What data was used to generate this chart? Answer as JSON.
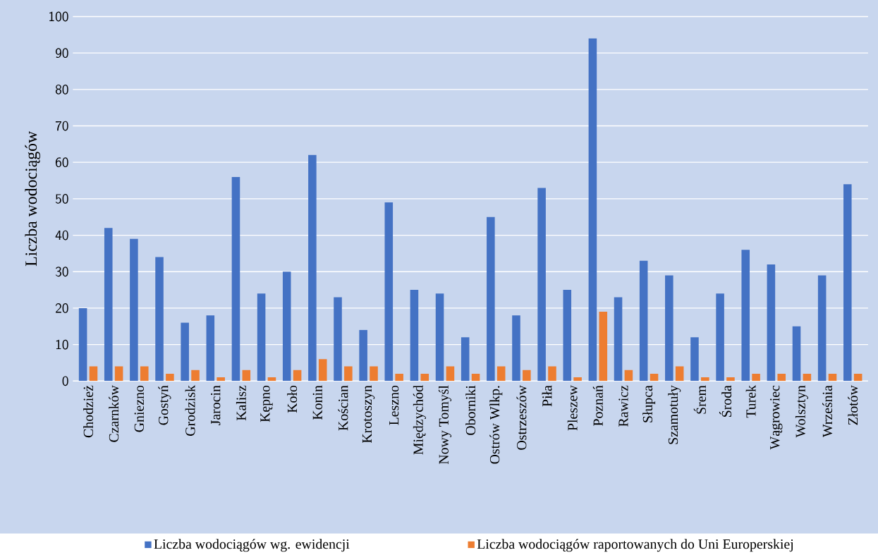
{
  "chart_data": {
    "type": "bar",
    "ylabel": "Liczba wodociągów",
    "categories": [
      "Chodzież",
      "Czarnków",
      "Gniezno",
      "Gostyń",
      "Grodzisk",
      "Jarocin",
      "Kalisz",
      "Kępno",
      "Koło",
      "Konin",
      "Kościan",
      "Krotoszyn",
      "Leszno",
      "Międzychód",
      "Nowy Tomyśl",
      "Oborniki",
      "Ostrów Wlkp.",
      "Ostrzeszów",
      "Piła",
      "Pleszew",
      "Poznań",
      "Rawicz",
      "Słupca",
      "Szamotuły",
      "Śrem",
      "Środa",
      "Turek",
      "Wągrowiec",
      "Wolsztyn",
      "Września",
      "Złotów"
    ],
    "series": [
      {
        "name": "Liczba wodociągów wg. ewidencji",
        "color": "#4472c4",
        "values": [
          20,
          42,
          39,
          34,
          16,
          18,
          56,
          24,
          30,
          62,
          23,
          14,
          49,
          25,
          24,
          12,
          45,
          18,
          53,
          25,
          94,
          23,
          33,
          29,
          12,
          24,
          36,
          32,
          15,
          29,
          54
        ]
      },
      {
        "name": "Liczba wodociągów raportowanych do Uni Europerskiej",
        "color": "#ed7d31",
        "values": [
          4,
          4,
          4,
          2,
          3,
          1,
          3,
          1,
          3,
          6,
          4,
          4,
          2,
          2,
          4,
          2,
          4,
          3,
          4,
          1,
          19,
          3,
          2,
          4,
          1,
          1,
          2,
          2,
          2,
          2,
          2
        ]
      }
    ],
    "ylim": [
      0,
      100
    ],
    "yticks": [
      0,
      10,
      20,
      30,
      40,
      50,
      60,
      70,
      80,
      90,
      100
    ],
    "grid": "y",
    "legend": "bottom"
  }
}
